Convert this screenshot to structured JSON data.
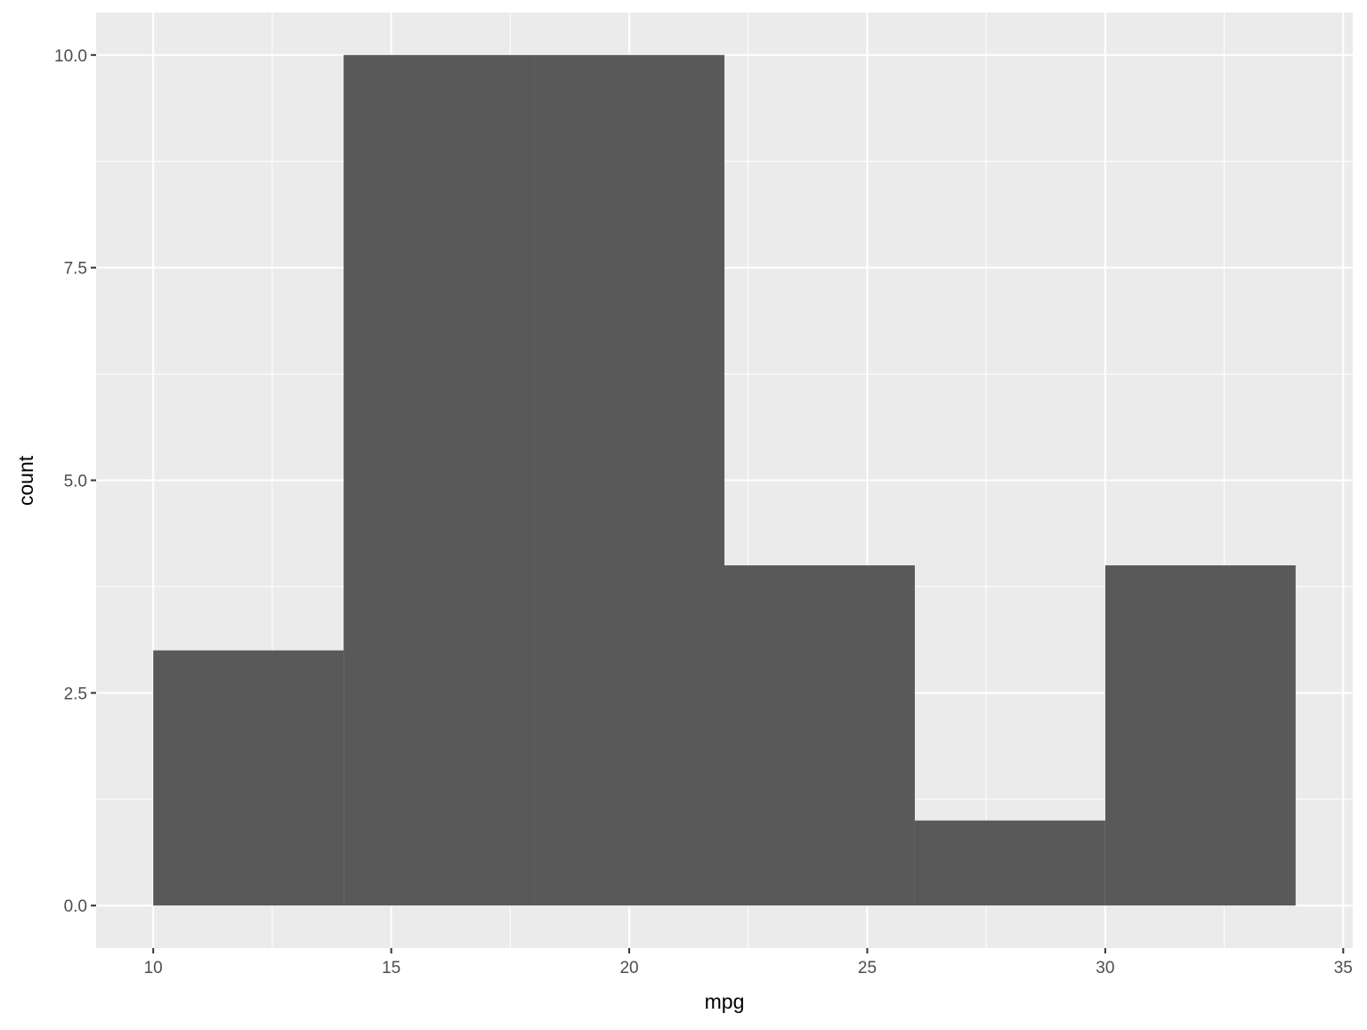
{
  "chart_data": {
    "type": "bar",
    "subtype": "histogram",
    "title": "",
    "xlabel": "mpg",
    "ylabel": "count",
    "bins": [
      {
        "xmin": 10,
        "xmax": 14,
        "count": 3
      },
      {
        "xmin": 14,
        "xmax": 18,
        "count": 10
      },
      {
        "xmin": 18,
        "xmax": 22,
        "count": 10
      },
      {
        "xmin": 22,
        "xmax": 26,
        "count": 4
      },
      {
        "xmin": 26,
        "xmax": 30,
        "count": 1
      },
      {
        "xmin": 30,
        "xmax": 34,
        "count": 4
      }
    ],
    "xlim": [
      8.8,
      35.2
    ],
    "ylim": [
      -0.5,
      10.5
    ],
    "xticks": [
      10,
      15,
      20,
      25,
      30,
      35
    ],
    "xtick_labels": [
      "10",
      "15",
      "20",
      "25",
      "30",
      "35"
    ],
    "yticks": [
      0,
      2.5,
      5,
      7.5,
      10
    ],
    "ytick_labels": [
      "0.0",
      "2.5",
      "5.0",
      "7.5",
      "10.0"
    ],
    "grid": true,
    "colors": {
      "panel": "#EBEBEB",
      "grid": "#FFFFFF",
      "bar": "#595959",
      "tick_text": "#4D4D4D",
      "title_text": "#000000"
    }
  }
}
